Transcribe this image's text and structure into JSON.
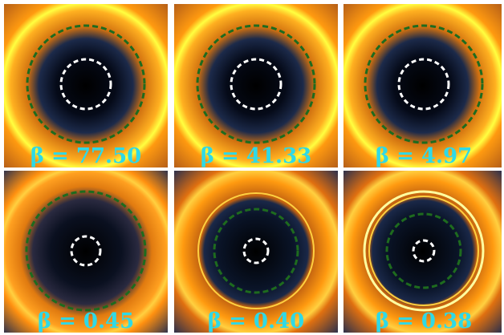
{
  "panels": [
    {
      "label": "β = 77.50"
    },
    {
      "label": "β = 41.33"
    },
    {
      "label": "β = 4.97"
    },
    {
      "label": "β = 0.45"
    },
    {
      "label": "β = 0.40"
    },
    {
      "label": "β = 0.38"
    }
  ]
}
